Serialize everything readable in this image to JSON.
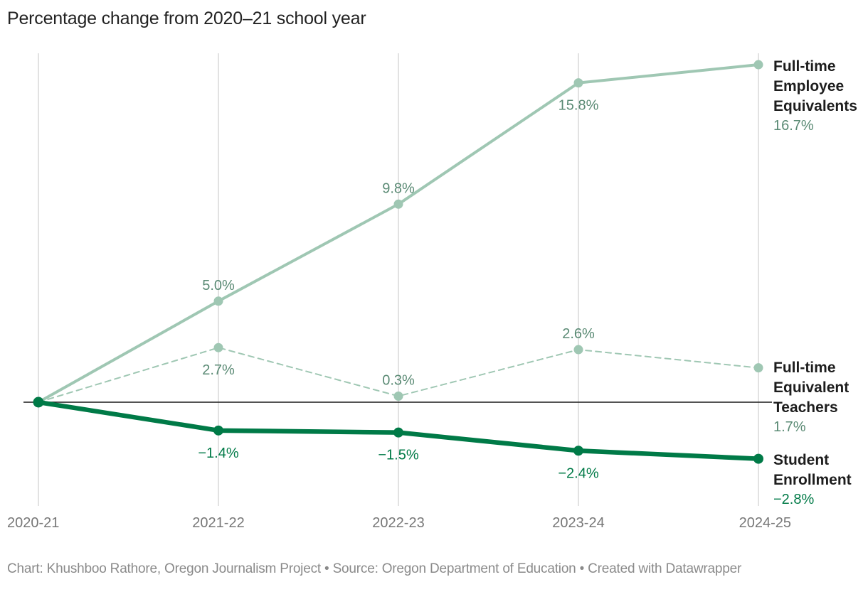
{
  "title": "Percentage change from 2020–21 school year",
  "footer": "Chart: Khushboo Rathore, Oregon Journalism Project • Source: Oregon Department of Education • Created with Datawrapper",
  "chart_data": {
    "type": "line",
    "title": "Percentage change from 2020–21 school year",
    "xlabel": "",
    "ylabel": "",
    "x": [
      "2020-21",
      "2021-22",
      "2022-23",
      "2023-24",
      "2024-25"
    ],
    "ylim": [
      -3.5,
      17.6
    ],
    "grid": "vertical",
    "baseline": 0,
    "legend": "direct-labels-right",
    "series": [
      {
        "name": "Full-time Employee Equivalents",
        "name_lines": [
          "Full-time",
          "Employee",
          "Equivalents"
        ],
        "values": [
          0,
          5.0,
          9.8,
          15.8,
          16.7
        ],
        "labels": [
          "",
          "5.0%",
          "9.8%",
          "15.8%",
          "16.7%"
        ],
        "label_pos": [
          "",
          "above",
          "above",
          "below",
          "end"
        ],
        "style": "solid",
        "color": "#9fc7b3",
        "label_color": "#5a8a74"
      },
      {
        "name": "Full-time Equivalent Teachers",
        "name_lines": [
          "Full-time",
          "Equivalent",
          "Teachers"
        ],
        "values": [
          0,
          2.7,
          0.3,
          2.6,
          1.7
        ],
        "labels": [
          "",
          "2.7%",
          "0.3%",
          "2.6%",
          "1.7%"
        ],
        "label_pos": [
          "",
          "below",
          "above",
          "above",
          "end"
        ],
        "style": "dashed",
        "color": "#9fc7b3",
        "label_color": "#5a8a74"
      },
      {
        "name": "Student Enrollment",
        "name_lines": [
          "Student",
          "Enrollment"
        ],
        "values": [
          0,
          -1.4,
          -1.5,
          -2.4,
          -2.8
        ],
        "labels": [
          "",
          "−1.4%",
          "−1.5%",
          "−2.4%",
          "−2.8%"
        ],
        "label_pos": [
          "",
          "below",
          "below",
          "below",
          "end"
        ],
        "style": "bold",
        "color": "#007a47",
        "label_color": "#007a47"
      }
    ]
  }
}
